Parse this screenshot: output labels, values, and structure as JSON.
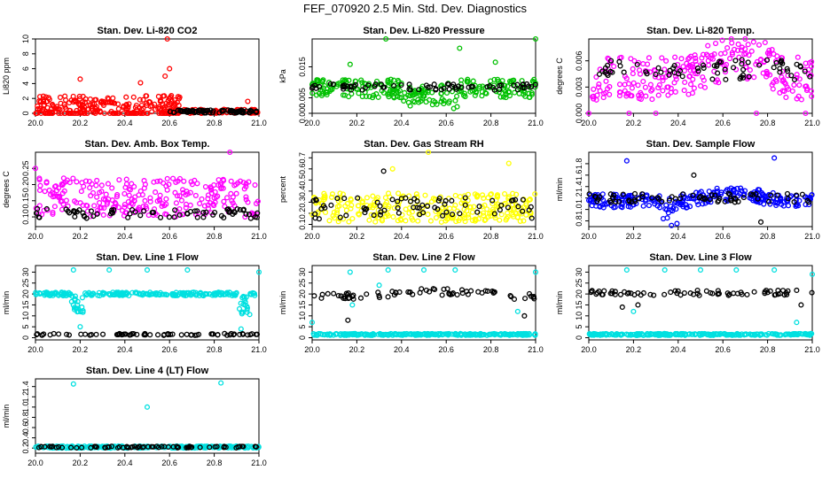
{
  "page": {
    "title": "FEF_070920  2.5 Min. Std. Dev. Diagnostics"
  },
  "chart_data": [
    {
      "type": "scatter",
      "title": "Stan. Dev. Li-820 CO2",
      "ylabel": "Li820 ppm",
      "xlim": [
        20.0,
        21.0
      ],
      "ylim": [
        0,
        10
      ],
      "xticks": [
        "20.0",
        "20.2",
        "20.4",
        "20.6",
        "20.8",
        "21.0"
      ],
      "yticks": [
        {
          "v": 0,
          "t": "0"
        },
        {
          "v": 2,
          "t": "2"
        },
        {
          "v": 4,
          "t": "4"
        },
        {
          "v": 6,
          "t": "6"
        },
        {
          "v": 8,
          "t": "8"
        },
        {
          "v": 10,
          "t": "10"
        }
      ],
      "series": [
        {
          "color": "#ff0000",
          "base": 0.8,
          "spread": 1.6,
          "band": [
            20.0,
            20.65
          ],
          "base2": 0.25,
          "spread2": 0.3,
          "outliers": [
            [
              20.59,
              10.0
            ],
            [
              20.6,
              6.0
            ],
            [
              20.47,
              4.1
            ],
            [
              20.2,
              4.6
            ],
            [
              20.58,
              5.0
            ],
            [
              20.95,
              1.6
            ]
          ]
        },
        {
          "color": "#000000",
          "base": 0.25,
          "spread": 0.2,
          "band": [
            20.6,
            21.0
          ],
          "outliers": []
        }
      ]
    },
    {
      "type": "scatter",
      "title": "Stan. Dev. Li-820 Pressure",
      "ylabel": "kPa",
      "xlim": [
        20.0,
        21.0
      ],
      "ylim": [
        0,
        0.024
      ],
      "xticks": [
        "20.0",
        "20.2",
        "20.4",
        "20.6",
        "20.8",
        "21.0"
      ],
      "yticks": [
        {
          "v": 0.0,
          "t": "0.000"
        },
        {
          "v": 0.005,
          "t": "0.005"
        },
        {
          "v": 0.015,
          "t": "0.015"
        }
      ],
      "series": [
        {
          "color": "#00c000",
          "base": 0.008,
          "spread": 0.003,
          "dip": [
            20.4,
            20.65,
            0.004
          ],
          "outliers": [
            [
              20.33,
              0.024
            ],
            [
              20.66,
              0.021
            ],
            [
              21.0,
              0.024
            ],
            [
              20.82,
              0.0165
            ],
            [
              20.17,
              0.0158
            ]
          ]
        },
        {
          "color": "#000000",
          "base": 0.0085,
          "spread": 0.001,
          "outliers": []
        }
      ]
    },
    {
      "type": "scatter",
      "title": "Stan. Dev. Li-820 Temp.",
      "ylabel": "degrees C",
      "xlim": [
        20.0,
        21.0
      ],
      "ylim": [
        0,
        0.0085
      ],
      "xticks": [
        "20.0",
        "20.2",
        "20.4",
        "20.6",
        "20.8",
        "21.0"
      ],
      "yticks": [
        {
          "v": 0.0,
          "t": "0.000"
        },
        {
          "v": 0.003,
          "t": "0.003"
        },
        {
          "v": 0.006,
          "t": "0.006"
        }
      ],
      "series": [
        {
          "color": "#ff00ff",
          "base": 0.004,
          "spread": 0.0025,
          "hump": [
            20.45,
            20.9,
            0.0025
          ],
          "outliers": [
            [
              20.0,
              0.0
            ],
            [
              20.18,
              0.0
            ],
            [
              20.3,
              0.0
            ],
            [
              20.75,
              0.0
            ],
            [
              20.97,
              0.0
            ]
          ]
        },
        {
          "color": "#000000",
          "base": 0.005,
          "spread": 0.0012,
          "outliers": []
        }
      ]
    },
    {
      "type": "scatter",
      "title": "Stan. Dev. Amb. Box Temp.",
      "ylabel": "degrees C",
      "xlim": [
        20.0,
        21.0
      ],
      "ylim": [
        0.07,
        0.3
      ],
      "xticks": [
        "20.0",
        "20.2",
        "20.4",
        "20.6",
        "20.8",
        "21.0"
      ],
      "yticks": [
        {
          "v": 0.1,
          "t": "0.10"
        },
        {
          "v": 0.15,
          "t": "0.15"
        },
        {
          "v": 0.2,
          "t": "0.20"
        },
        {
          "v": 0.25,
          "t": "0.25"
        }
      ],
      "series": [
        {
          "color": "#ff00ff",
          "base": 0.16,
          "spread": 0.06,
          "outliers": [
            [
              20.0,
              0.25
            ],
            [
              20.87,
              0.3
            ],
            [
              20.13,
              0.18
            ]
          ]
        },
        {
          "color": "#000000",
          "base": 0.11,
          "spread": 0.015,
          "outliers": []
        }
      ]
    },
    {
      "type": "scatter",
      "title": "Stan. Dev. Gas Stream RH",
      "ylabel": "percent",
      "xlim": [
        20.0,
        21.0
      ],
      "ylim": [
        0.08,
        0.75
      ],
      "xticks": [
        "20.0",
        "20.2",
        "20.4",
        "20.6",
        "20.8",
        "21.0"
      ],
      "yticks": [
        {
          "v": 0.1,
          "t": "0.1"
        },
        {
          "v": 0.2,
          "t": "0.2"
        },
        {
          "v": 0.3,
          "t": "0.3"
        },
        {
          "v": 0.4,
          "t": "0.4"
        },
        {
          "v": 0.5,
          "t": "0.5"
        },
        {
          "v": 0.6,
          "t": "0.6"
        },
        {
          "v": 0.7,
          "t": "0.7"
        }
      ],
      "series": [
        {
          "color": "#ffff00",
          "base": 0.25,
          "spread": 0.13,
          "outliers": [
            [
              20.52,
              0.75
            ],
            [
              20.88,
              0.65
            ],
            [
              20.36,
              0.6
            ]
          ]
        },
        {
          "color": "#000000",
          "base": 0.25,
          "spread": 0.1,
          "outliers": [
            [
              20.32,
              0.58
            ]
          ]
        }
      ]
    },
    {
      "type": "scatter",
      "title": "Stan. Dev. Sample Flow",
      "ylabel": "ml/min",
      "xlim": [
        20.0,
        21.0
      ],
      "ylim": [
        0.7,
        2.0
      ],
      "xticks": [
        "20.0",
        "20.2",
        "20.4",
        "20.6",
        "20.8",
        "21.0"
      ],
      "yticks": [
        {
          "v": 0.8,
          "t": "0.8"
        },
        {
          "v": 1.0,
          "t": "1.0"
        },
        {
          "v": 1.2,
          "t": "1.2"
        },
        {
          "v": 1.4,
          "t": "1.4"
        },
        {
          "v": 1.6,
          "t": "1.6"
        },
        {
          "v": 1.8,
          "t": "1.8"
        }
      ],
      "series": [
        {
          "color": "#0000ff",
          "base": 1.15,
          "spread": 0.12,
          "hump": [
            20.45,
            20.85,
            0.12
          ],
          "dip": [
            20.33,
            20.4,
            0.3
          ],
          "outliers": [
            [
              20.17,
              1.85
            ],
            [
              20.83,
              1.9
            ],
            [
              20.37,
              0.72
            ]
          ]
        },
        {
          "color": "#000000",
          "base": 1.2,
          "spread": 0.08,
          "outliers": [
            [
              20.47,
              1.6
            ],
            [
              20.77,
              0.78
            ]
          ]
        }
      ]
    },
    {
      "type": "scatter",
      "title": "Stan. Dev. Line 1 Flow",
      "ylabel": "ml/min",
      "xlim": [
        20.0,
        21.0
      ],
      "ylim": [
        -1,
        33
      ],
      "xticks": [
        "20.0",
        "20.2",
        "20.4",
        "20.6",
        "20.8",
        "21.0"
      ],
      "yticks": [
        {
          "v": 0,
          "t": "0"
        },
        {
          "v": 5,
          "t": "5"
        },
        {
          "v": 10,
          "t": "10"
        },
        {
          "v": 15,
          "t": "15"
        },
        {
          "v": 20,
          "t": "20"
        },
        {
          "v": 25,
          "t": "25"
        },
        {
          "v": 30,
          "t": "30"
        }
      ],
      "series": [
        {
          "color": "#00e0e0",
          "base": 20,
          "spread": 0.8,
          "dip": [
            20.16,
            20.22,
            8
          ],
          "dip2": [
            20.9,
            20.96,
            10
          ],
          "outliers": [
            [
              20.33,
              31
            ],
            [
              20.5,
              31
            ],
            [
              20.68,
              31
            ],
            [
              20.17,
              31
            ],
            [
              21.0,
              30
            ],
            [
              20.2,
              5
            ],
            [
              20.92,
              4
            ]
          ]
        },
        {
          "color": "#000000",
          "base": 1.5,
          "spread": 0.4,
          "outliers": []
        }
      ]
    },
    {
      "type": "scatter",
      "title": "Stan. Dev. Line 2 Flow",
      "ylabel": "ml/min",
      "xlim": [
        20.0,
        21.0
      ],
      "ylim": [
        -1,
        33
      ],
      "xticks": [
        "20.0",
        "20.2",
        "20.4",
        "20.6",
        "20.8",
        "21.0"
      ],
      "yticks": [
        {
          "v": 0,
          "t": "0"
        },
        {
          "v": 5,
          "t": "5"
        },
        {
          "v": 10,
          "t": "10"
        },
        {
          "v": 15,
          "t": "15"
        },
        {
          "v": 20,
          "t": "20"
        },
        {
          "v": 25,
          "t": "25"
        },
        {
          "v": 30,
          "t": "30"
        }
      ],
      "series": [
        {
          "color": "#00e0e0",
          "base": 1.5,
          "spread": 0.4,
          "outliers": [
            [
              20.17,
              30
            ],
            [
              20.3,
              24
            ],
            [
              20.34,
              31
            ],
            [
              20.5,
              31
            ],
            [
              20.64,
              31
            ],
            [
              21.0,
              30
            ],
            [
              20.0,
              7
            ],
            [
              20.92,
              12
            ],
            [
              20.18,
              15
            ]
          ]
        },
        {
          "color": "#000000",
          "base": 19,
          "spread": 1.5,
          "hump": [
            20.2,
            20.9,
            2
          ],
          "outliers": [
            [
              20.16,
              8
            ],
            [
              20.95,
              10
            ]
          ]
        }
      ]
    },
    {
      "type": "scatter",
      "title": "Stan. Dev. Line 3 Flow",
      "ylabel": "ml/min",
      "xlim": [
        20.0,
        21.0
      ],
      "ylim": [
        -1,
        33
      ],
      "xticks": [
        "20.0",
        "20.2",
        "20.4",
        "20.6",
        "20.8",
        "21.0"
      ],
      "yticks": [
        {
          "v": 0,
          "t": "0"
        },
        {
          "v": 5,
          "t": "5"
        },
        {
          "v": 10,
          "t": "10"
        },
        {
          "v": 15,
          "t": "15"
        },
        {
          "v": 20,
          "t": "20"
        },
        {
          "v": 25,
          "t": "25"
        },
        {
          "v": 30,
          "t": "30"
        }
      ],
      "series": [
        {
          "color": "#00e0e0",
          "base": 1.5,
          "spread": 0.4,
          "outliers": [
            [
              20.17,
              31
            ],
            [
              20.34,
              31
            ],
            [
              20.5,
              31
            ],
            [
              20.66,
              31
            ],
            [
              20.83,
              31
            ],
            [
              21.0,
              29
            ],
            [
              20.2,
              12
            ],
            [
              20.93,
              7
            ]
          ]
        },
        {
          "color": "#000000",
          "base": 20.5,
          "spread": 1.2,
          "outliers": [
            [
              20.15,
              14
            ],
            [
              20.22,
              15
            ],
            [
              20.95,
              15
            ]
          ]
        }
      ]
    },
    {
      "type": "scatter",
      "title": "Stan. Dev. Line 4 (LT) Flow",
      "ylabel": "ml/min",
      "xlim": [
        20.0,
        21.0
      ],
      "ylim": [
        0.1,
        1.55
      ],
      "xticks": [
        "20.0",
        "20.2",
        "20.4",
        "20.6",
        "20.8",
        "21.0"
      ],
      "yticks": [
        {
          "v": 0.2,
          "t": "0.2"
        },
        {
          "v": 0.4,
          "t": "0.4"
        },
        {
          "v": 0.6,
          "t": "0.6"
        },
        {
          "v": 0.8,
          "t": "0.8"
        },
        {
          "v": 1.0,
          "t": "1.0"
        },
        {
          "v": 1.2,
          "t": "1.2"
        },
        {
          "v": 1.4,
          "t": "1.4"
        }
      ],
      "series": [
        {
          "color": "#00e0e0",
          "base": 0.22,
          "spread": 0.02,
          "outliers": [
            [
              20.17,
              1.45
            ],
            [
              20.83,
              1.47
            ],
            [
              20.5,
              1.0
            ]
          ]
        },
        {
          "color": "#000000",
          "base": 0.22,
          "spread": 0.015,
          "outliers": []
        }
      ]
    }
  ]
}
